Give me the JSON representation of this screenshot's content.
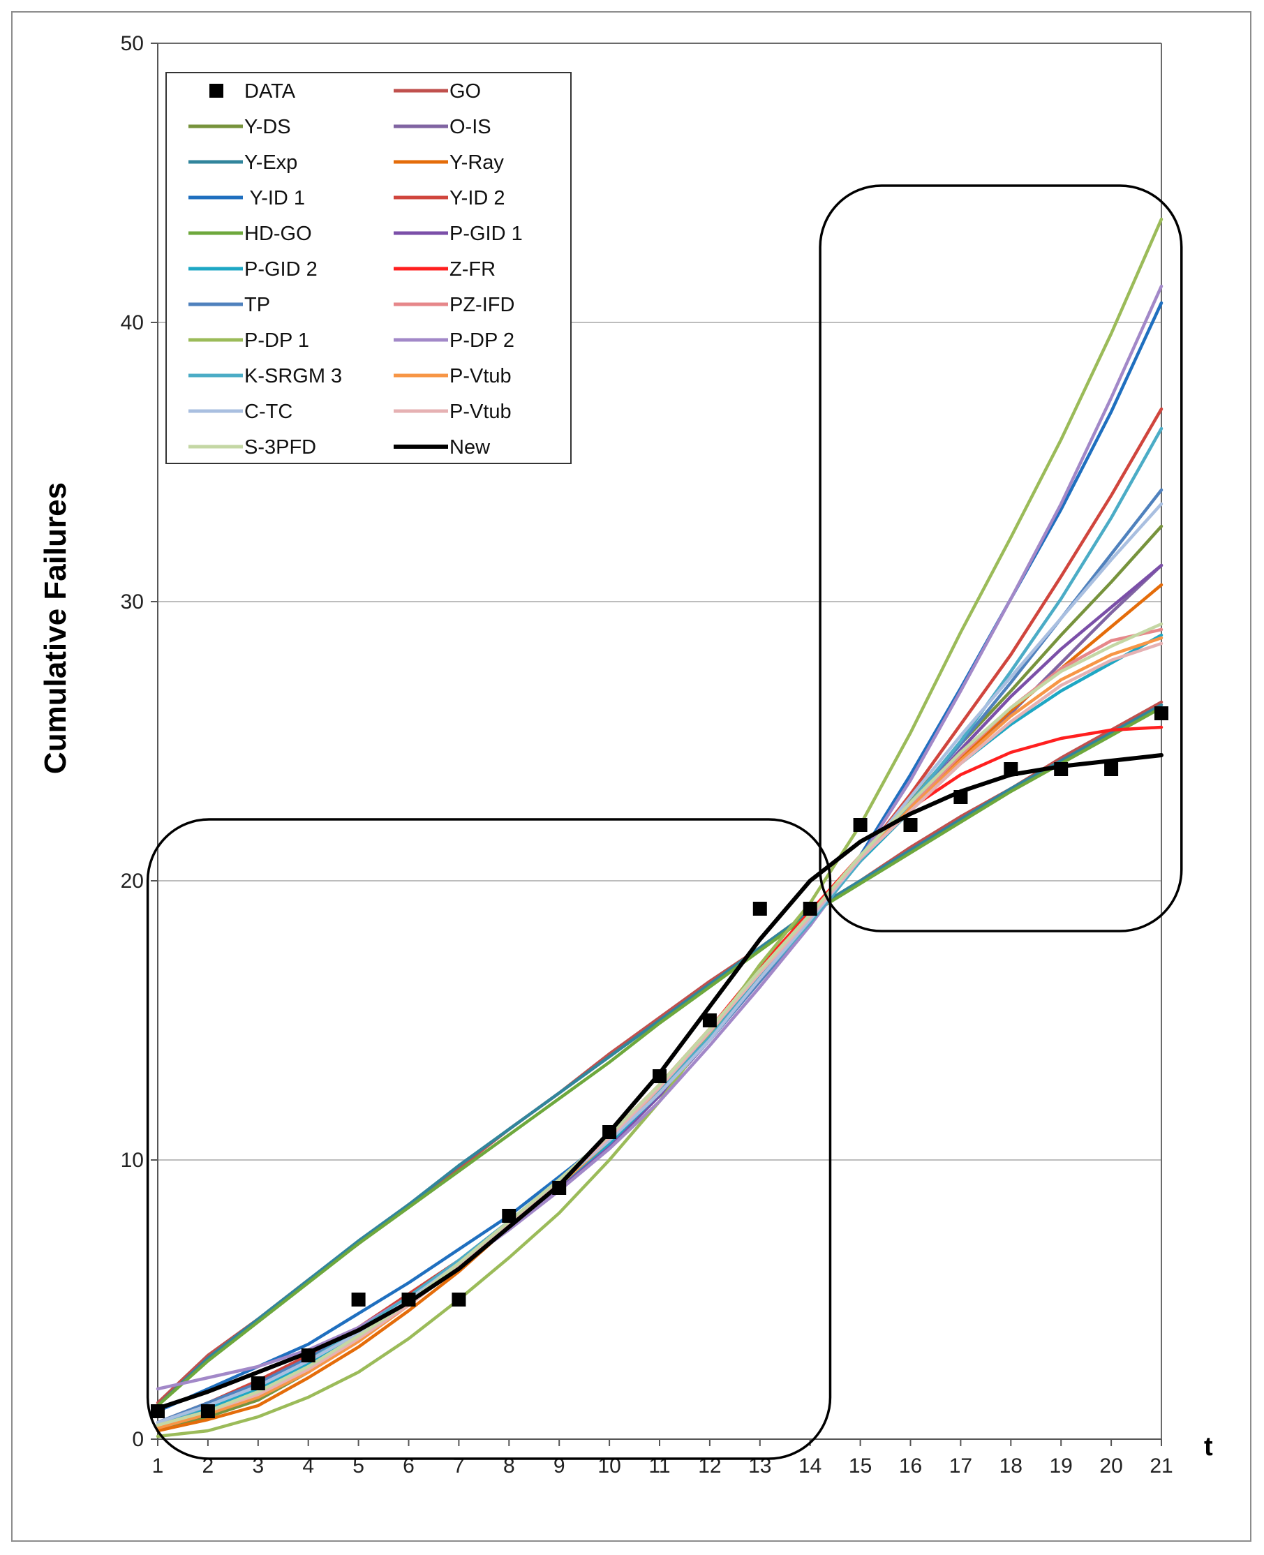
{
  "chart_data": {
    "type": "line",
    "title": "",
    "xlabel": "t",
    "ylabel": "Cumulative Failures",
    "xlim": [
      1,
      21
    ],
    "ylim": [
      0,
      50
    ],
    "x": [
      1,
      2,
      3,
      4,
      5,
      6,
      7,
      8,
      9,
      10,
      11,
      12,
      13,
      14,
      15,
      16,
      17,
      18,
      19,
      20,
      21
    ],
    "xticks": [
      "1",
      "2",
      "3",
      "4",
      "5",
      "6",
      "7",
      "8",
      "9",
      "10",
      "11",
      "12",
      "13",
      "14",
      "15",
      "16",
      "17",
      "18",
      "19",
      "20",
      "21"
    ],
    "yticks": [
      "0",
      "10",
      "20",
      "30",
      "40",
      "50"
    ],
    "gridlines": "horizontal",
    "legend_position": "top-left",
    "scatter": {
      "name": "DATA",
      "color": "#000000",
      "values": [
        1,
        1,
        2,
        3,
        5,
        5,
        5,
        8,
        9,
        11,
        13,
        15,
        19,
        19,
        22,
        22,
        23,
        24,
        24,
        24,
        26
      ]
    },
    "series": [
      {
        "name": "GO",
        "color": "#c0504d",
        "values": [
          1.3,
          3.0,
          4.3,
          5.7,
          7.0,
          8.4,
          9.7,
          11.1,
          12.4,
          13.8,
          15.1,
          16.4,
          17.6,
          18.9,
          20.0,
          21.2,
          22.3,
          23.3,
          24.4,
          25.4,
          26.4
        ]
      },
      {
        "name": "Y-DS",
        "color": "#77933c",
        "values": [
          0.3,
          0.8,
          1.4,
          2.4,
          3.6,
          4.9,
          6.2,
          7.7,
          9.1,
          10.8,
          12.6,
          14.5,
          16.6,
          18.6,
          20.9,
          22.9,
          24.9,
          26.8,
          28.8,
          30.7,
          32.7
        ]
      },
      {
        "name": "O-IS",
        "color": "#8064a2",
        "values": [
          0.4,
          0.9,
          1.5,
          2.4,
          3.6,
          4.9,
          6.2,
          7.7,
          9.1,
          10.7,
          12.5,
          14.4,
          16.5,
          18.6,
          20.8,
          22.6,
          24.3,
          26.0,
          27.8,
          29.6,
          31.3
        ]
      },
      {
        "name": "Y-Exp",
        "color": "#31859c",
        "values": [
          1.2,
          2.9,
          4.3,
          5.7,
          7.1,
          8.4,
          9.8,
          11.1,
          12.4,
          13.7,
          15.0,
          16.3,
          17.6,
          18.9,
          20.0,
          21.1,
          22.2,
          23.3,
          24.3,
          25.3,
          26.3
        ]
      },
      {
        "name": "Y-Ray",
        "color": "#e46c0a",
        "values": [
          0.3,
          0.7,
          1.2,
          2.2,
          3.3,
          4.6,
          6.0,
          7.6,
          9.0,
          10.8,
          12.7,
          14.7,
          16.8,
          18.7,
          20.8,
          22.5,
          24.4,
          26.1,
          27.6,
          29.1,
          30.6
        ]
      },
      {
        "name": "Y-ID 1",
        "color": "#1f6fbf",
        "values": [
          1.0,
          1.8,
          2.6,
          3.4,
          4.5,
          5.6,
          6.8,
          8.0,
          9.4,
          10.8,
          12.5,
          14.4,
          16.5,
          18.4,
          20.9,
          23.8,
          26.9,
          30.1,
          33.3,
          36.8,
          40.7
        ]
      },
      {
        "name": "Y-ID 2",
        "color": "#d0453d",
        "values": [
          0.6,
          1.3,
          2.1,
          3.0,
          4.0,
          5.2,
          6.4,
          7.8,
          9.2,
          10.7,
          12.4,
          14.3,
          16.4,
          18.5,
          20.8,
          23.1,
          25.6,
          28.1,
          30.9,
          33.8,
          36.9
        ]
      },
      {
        "name": "HD-GO",
        "color": "#6ea83c",
        "values": [
          1.2,
          2.8,
          4.2,
          5.6,
          7.0,
          8.3,
          9.6,
          10.9,
          12.2,
          13.5,
          14.9,
          16.2,
          17.5,
          18.8,
          19.9,
          21.0,
          22.1,
          23.2,
          24.2,
          25.2,
          26.2
        ]
      },
      {
        "name": "P-GID 1",
        "color": "#7b4fa8",
        "values": [
          0.5,
          1.1,
          1.8,
          2.6,
          3.7,
          4.9,
          6.2,
          7.6,
          9.0,
          10.5,
          12.3,
          14.3,
          16.4,
          18.6,
          20.7,
          22.7,
          24.7,
          26.6,
          28.3,
          29.8,
          31.3
        ]
      },
      {
        "name": "P-GID 2",
        "color": "#1ea7c4",
        "values": [
          0.5,
          1.1,
          1.8,
          2.7,
          3.8,
          5.0,
          6.3,
          7.7,
          9.1,
          10.6,
          12.4,
          14.4,
          16.6,
          18.7,
          20.7,
          22.5,
          24.2,
          25.6,
          26.8,
          27.8,
          28.8
        ]
      },
      {
        "name": "Z-FR",
        "color": "#ff1f1f",
        "values": [
          0.5,
          1.0,
          1.6,
          2.5,
          3.6,
          4.8,
          6.2,
          7.7,
          9.2,
          10.9,
          12.7,
          14.7,
          16.9,
          18.9,
          20.9,
          22.6,
          23.8,
          24.6,
          25.1,
          25.4,
          25.5
        ]
      },
      {
        "name": "TP",
        "color": "#4f81bd",
        "values": [
          0.6,
          1.3,
          2.0,
          2.9,
          3.9,
          5.1,
          6.4,
          7.8,
          9.2,
          10.7,
          12.4,
          14.3,
          16.4,
          18.5,
          20.8,
          22.8,
          24.9,
          27.1,
          29.4,
          31.7,
          34.0
        ]
      },
      {
        "name": "PZ-IFD",
        "color": "#e6878a",
        "values": [
          0.4,
          0.9,
          1.5,
          2.4,
          3.5,
          4.8,
          6.2,
          7.7,
          9.1,
          10.8,
          12.7,
          14.6,
          16.7,
          18.7,
          20.8,
          22.7,
          24.5,
          26.2,
          27.6,
          28.6,
          29.0
        ]
      },
      {
        "name": "P-DP 1",
        "color": "#9bbb59",
        "values": [
          0.1,
          0.3,
          0.8,
          1.5,
          2.4,
          3.6,
          5.0,
          6.5,
          8.1,
          10.0,
          12.1,
          14.5,
          17.0,
          19.2,
          22.0,
          25.3,
          28.9,
          32.3,
          35.8,
          39.6,
          43.7
        ]
      },
      {
        "name": "P-DP 2",
        "color": "#a288c8",
        "values": [
          1.8,
          2.2,
          2.6,
          3.2,
          4.0,
          5.1,
          6.2,
          7.5,
          8.9,
          10.4,
          12.1,
          14.1,
          16.2,
          18.4,
          20.8,
          23.6,
          26.8,
          30.1,
          33.5,
          37.3,
          41.3
        ]
      },
      {
        "name": "K-SRGM 3",
        "color": "#4bacc6",
        "values": [
          0.5,
          1.2,
          1.9,
          2.8,
          3.9,
          5.1,
          6.4,
          7.8,
          9.3,
          10.8,
          12.5,
          14.4,
          16.5,
          18.5,
          20.7,
          22.8,
          25.0,
          27.5,
          30.1,
          33.0,
          36.2
        ]
      },
      {
        "name": "P-Vtub",
        "color": "#f79646",
        "values": [
          0.4,
          0.9,
          1.5,
          2.4,
          3.5,
          4.8,
          6.2,
          7.7,
          9.1,
          10.7,
          12.6,
          14.6,
          16.7,
          18.7,
          20.8,
          22.6,
          24.3,
          25.9,
          27.2,
          28.1,
          28.7
        ]
      },
      {
        "name": "C-TC",
        "color": "#a9bfe0",
        "values": [
          0.6,
          1.2,
          1.9,
          2.8,
          3.8,
          5.0,
          6.3,
          7.7,
          9.2,
          10.7,
          12.4,
          14.3,
          16.5,
          18.6,
          20.8,
          23.0,
          25.2,
          27.3,
          29.4,
          31.5,
          33.5
        ]
      },
      {
        "name": "P-Vtub",
        "color": "#e6b1b3",
        "values": [
          0.5,
          1.0,
          1.6,
          2.5,
          3.6,
          4.8,
          6.2,
          7.7,
          9.2,
          10.8,
          12.6,
          14.6,
          16.7,
          18.7,
          20.8,
          22.5,
          24.2,
          25.7,
          27.0,
          27.9,
          28.5
        ]
      },
      {
        "name": "S-3PFD",
        "color": "#c4d7a4",
        "values": [
          0.5,
          1.0,
          1.7,
          2.6,
          3.7,
          4.9,
          6.3,
          7.8,
          9.3,
          10.9,
          12.7,
          14.7,
          16.8,
          18.8,
          20.9,
          22.8,
          24.6,
          26.2,
          27.5,
          28.4,
          29.2
        ]
      },
      {
        "name": "New",
        "color": "#000000",
        "values": [
          1.1,
          1.7,
          2.4,
          3.1,
          3.9,
          4.9,
          6.1,
          7.6,
          9.1,
          11.0,
          13.1,
          15.5,
          17.9,
          20.0,
          21.4,
          22.4,
          23.2,
          23.8,
          24.1,
          24.3,
          24.5
        ]
      }
    ],
    "legend": [
      {
        "name": "DATA",
        "marker": "square",
        "color": "#000000"
      },
      {
        "name": "GO",
        "color": "#c0504d"
      },
      {
        "name": "Y-DS",
        "color": "#77933c"
      },
      {
        "name": "O-IS",
        "color": "#8064a2"
      },
      {
        "name": "Y-Exp",
        "color": "#31859c"
      },
      {
        "name": "Y-Ray",
        "color": "#e46c0a"
      },
      {
        "name": " Y-ID 1",
        "color": "#1f6fbf"
      },
      {
        "name": "Y-ID 2",
        "color": "#d0453d"
      },
      {
        "name": "HD-GO",
        "color": "#6ea83c"
      },
      {
        "name": "P-GID 1",
        "color": "#7b4fa8"
      },
      {
        "name": "P-GID 2",
        "color": "#1ea7c4"
      },
      {
        "name": "Z-FR",
        "color": "#ff1f1f"
      },
      {
        "name": "TP",
        "color": "#4f81bd"
      },
      {
        "name": "PZ-IFD",
        "color": "#e6878a"
      },
      {
        "name": "P-DP 1",
        "color": "#9bbb59"
      },
      {
        "name": "P-DP 2",
        "color": "#a288c8"
      },
      {
        "name": "K-SRGM 3",
        "color": "#4bacc6"
      },
      {
        "name": "P-Vtub",
        "color": "#f79646"
      },
      {
        "name": "C-TC",
        "color": "#a9bfe0"
      },
      {
        "name": "P-Vtub",
        "color": "#e6b1b3"
      },
      {
        "name": "S-3PFD",
        "color": "#c4d7a4"
      },
      {
        "name": "New",
        "color": "#000000"
      }
    ],
    "annotations": [
      {
        "type": "rounded-box",
        "x_range": [
          0.8,
          14.4
        ],
        "y_range": [
          -0.7,
          22.2
        ]
      },
      {
        "type": "rounded-box",
        "x_range": [
          14.2,
          21.4
        ],
        "y_range": [
          18.2,
          44.9
        ]
      }
    ]
  }
}
